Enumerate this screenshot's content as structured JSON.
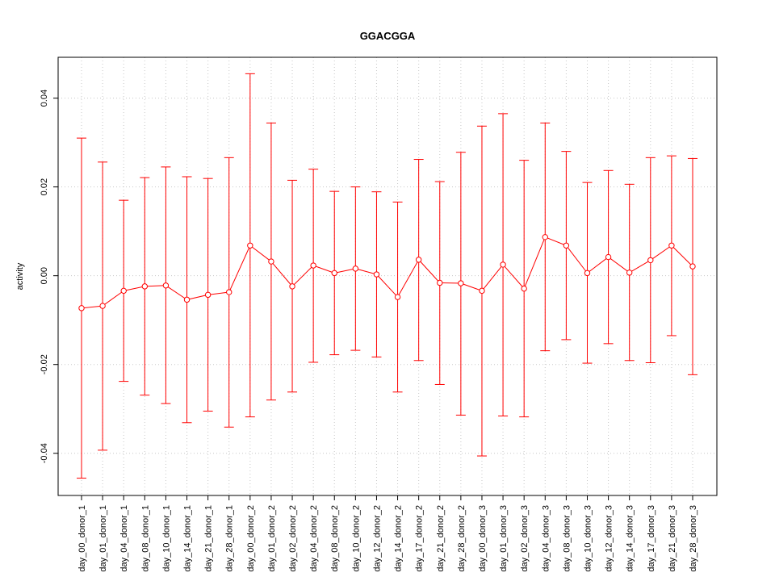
{
  "chart_data": {
    "type": "line",
    "title": "GGACGGA",
    "xlabel": "",
    "ylabel": "activity",
    "ylim": [
      -0.0495,
      0.0492
    ],
    "yticks": [
      -0.04,
      -0.02,
      0.0,
      0.02,
      0.04
    ],
    "ytick_labels": [
      "-0.04",
      "-0.02",
      "0.00",
      "0.02",
      "0.04"
    ],
    "grid": true,
    "series_color": "#ff0000",
    "categories": [
      "day_00_donor_1",
      "day_01_donor_1",
      "day_04_donor_1",
      "day_08_donor_1",
      "day_10_donor_1",
      "day_14_donor_1",
      "day_21_donor_1",
      "day_28_donor_1",
      "day_00_donor_2",
      "day_01_donor_2",
      "day_02_donor_2",
      "day_04_donor_2",
      "day_08_donor_2",
      "day_10_donor_2",
      "day_12_donor_2",
      "day_14_donor_2",
      "day_17_donor_2",
      "day_21_donor_2",
      "day_28_donor_2",
      "day_00_donor_3",
      "day_01_donor_3",
      "day_02_donor_3",
      "day_04_donor_3",
      "day_08_donor_3",
      "day_10_donor_3",
      "day_12_donor_3",
      "day_14_donor_3",
      "day_17_donor_3",
      "day_21_donor_3",
      "day_28_donor_3"
    ],
    "values": [
      -0.0073,
      -0.0068,
      -0.0034,
      -0.0024,
      -0.0022,
      -0.0054,
      -0.0043,
      -0.0037,
      0.0068,
      0.0032,
      -0.0024,
      0.0023,
      0.0006,
      0.0016,
      0.0003,
      -0.0048,
      0.0036,
      -0.0016,
      -0.0017,
      -0.0034,
      0.0025,
      -0.0029,
      0.0087,
      0.0068,
      0.0006,
      0.0042,
      0.0007,
      0.0035,
      0.0068,
      0.0021
    ],
    "error_upper": [
      0.031,
      0.0256,
      0.017,
      0.0221,
      0.0245,
      0.0223,
      0.0219,
      0.0266,
      0.0455,
      0.0344,
      0.0215,
      0.024,
      0.019,
      0.02,
      0.0189,
      0.0166,
      0.0262,
      0.0212,
      0.0278,
      0.0337,
      0.0365,
      0.026,
      0.0344,
      0.028,
      0.021,
      0.0237,
      0.0206,
      0.0266,
      0.027,
      0.0264
    ],
    "error_lower": [
      -0.0456,
      -0.0393,
      -0.0238,
      -0.0269,
      -0.0288,
      -0.0331,
      -0.0305,
      -0.0341,
      -0.0318,
      -0.028,
      -0.0262,
      -0.0195,
      -0.0178,
      -0.0168,
      -0.0183,
      -0.0262,
      -0.0191,
      -0.0245,
      -0.0314,
      -0.0406,
      -0.0316,
      -0.0318,
      -0.0169,
      -0.0144,
      -0.0197,
      -0.0153,
      -0.0191,
      -0.0196,
      -0.0135,
      -0.0223
    ]
  }
}
